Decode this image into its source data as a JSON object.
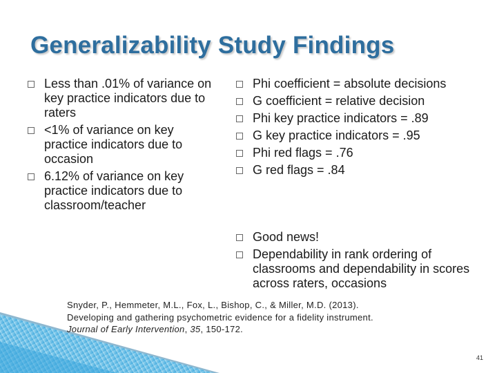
{
  "slide": {
    "title": "Generalizability Study Findings",
    "left_bullets": [
      "Less than .01% of variance on key practice indicators due to raters",
      "<1% of variance on key practice indicators due to occasion",
      "6.12% of variance on key practice indicators due to classroom/teacher"
    ],
    "right_bullets": [
      "Phi coefficient = absolute decisions",
      "G coefficient = relative decision",
      "Phi key practice indicators = .89",
      "G key practice indicators = .95",
      "Phi red flags = .76",
      "G red flags = .84"
    ],
    "right_bullets_2": [
      "Good news!",
      "Dependability in rank ordering of classrooms and dependability in scores across raters, occasions"
    ],
    "citation": {
      "line1": "Snyder, P., Hemmeter, M.L., Fox, L., Bishop, C., & Miller, M.D. (2013).",
      "line2": "Developing and gathering psychometric evidence for a fidelity instrument.",
      "journal": "Journal of Early Intervention",
      "sep1": ", ",
      "volume": "35",
      "pages": ", 150-172."
    },
    "page_number": "41"
  },
  "colors": {
    "title": "#2E6E9E",
    "accent_blue": "#3AA6DC",
    "accent_light": "#A8DDF3"
  }
}
